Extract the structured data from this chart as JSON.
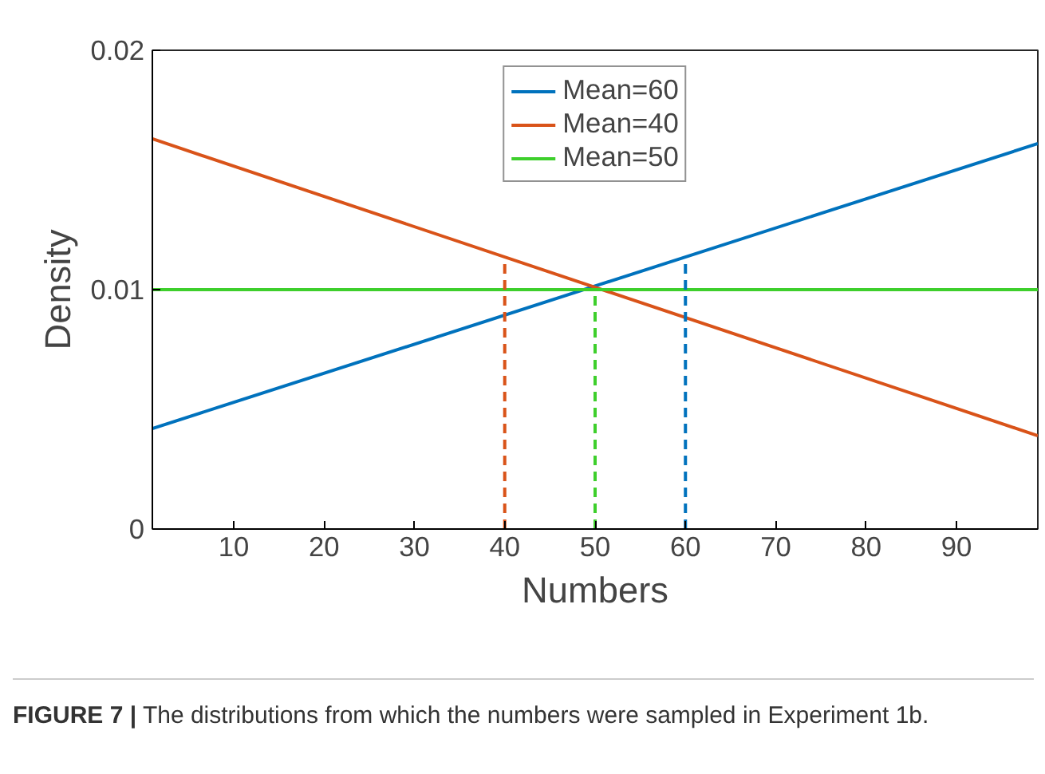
{
  "chart_data": {
    "type": "line",
    "xlabel": "Numbers",
    "ylabel": "Density",
    "xlim": [
      1,
      99
    ],
    "ylim": [
      0,
      0.02
    ],
    "xticks": [
      10,
      20,
      30,
      40,
      50,
      60,
      70,
      80,
      90
    ],
    "yticks": [
      0,
      0.01,
      0.02
    ],
    "grid": false,
    "legend": "top",
    "line_style": "solid",
    "marker": "none",
    "series": [
      {
        "name": "Mean=60",
        "color": "#0072bd",
        "x": [
          1,
          99
        ],
        "values": [
          0.0042,
          0.0161
        ]
      },
      {
        "name": "Mean=40",
        "color": "#d95319",
        "x": [
          1,
          99
        ],
        "values": [
          0.0163,
          0.0039
        ]
      },
      {
        "name": "Mean=50",
        "color": "#3ecf2c",
        "x": [
          1,
          99
        ],
        "values": [
          0.01,
          0.01
        ]
      },
      {
        "color": "#d95319",
        "x": [
          40,
          40
        ],
        "values": [
          0,
          0.0114
        ],
        "line_style": "dashed"
      },
      {
        "color": "#3ecf2c",
        "x": [
          50,
          50
        ],
        "values": [
          0,
          0.01
        ],
        "line_style": "dashed"
      },
      {
        "color": "#0072bd",
        "x": [
          60,
          60
        ],
        "values": [
          0,
          0.0114
        ],
        "line_style": "dashed"
      }
    ],
    "annotations": [
      "FIGURE 7 | The distributions from which the numbers were sampled in Experiment 1b."
    ]
  }
}
